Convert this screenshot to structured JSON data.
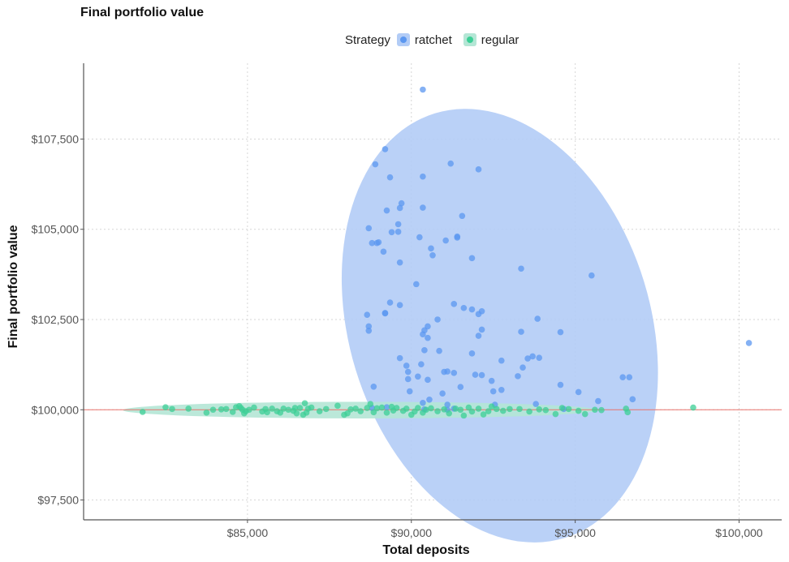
{
  "chart_data": {
    "type": "scatter",
    "title": "Final portfolio value",
    "xlabel": "Total deposits",
    "ylabel": "Final portfolio value",
    "xlim": [
      80000,
      101300
    ],
    "ylim": [
      96950,
      109600
    ],
    "x_ticks": [
      85000,
      90000,
      95000,
      100000
    ],
    "x_tick_labels": [
      "$85,000",
      "$90,000",
      "$95,000",
      "$100,000"
    ],
    "y_ticks": [
      97500,
      100000,
      102500,
      105000,
      107500
    ],
    "y_tick_labels": [
      "$97,500",
      "$100,000",
      "$102,500",
      "$105,000",
      "$107,500"
    ],
    "grid": true,
    "legend_title": "Strategy",
    "legend_position": "top",
    "reference_line": {
      "y": 100000,
      "color": "#e8736c"
    },
    "series": [
      {
        "name": "ratchet",
        "color": "#5b97f0",
        "ellipse": {
          "center": [
            92700,
            102330
          ],
          "rx": 4600,
          "ry": 6150,
          "angle_deg": -17,
          "fill": "#b2ccf6"
        },
        "points": [
          [
            90350,
            108870
          ],
          [
            89200,
            107220
          ],
          [
            91200,
            106820
          ],
          [
            88900,
            106800
          ],
          [
            92050,
            106660
          ],
          [
            89350,
            106440
          ],
          [
            90350,
            106460
          ],
          [
            89700,
            105720
          ],
          [
            89650,
            105590
          ],
          [
            89250,
            105520
          ],
          [
            90350,
            105600
          ],
          [
            91550,
            105370
          ],
          [
            89600,
            105140
          ],
          [
            88700,
            105030
          ],
          [
            89400,
            104920
          ],
          [
            89600,
            104930
          ],
          [
            90250,
            104780
          ],
          [
            91400,
            104770
          ],
          [
            91050,
            104690
          ],
          [
            91400,
            104800
          ],
          [
            88800,
            104620
          ],
          [
            88950,
            104620
          ],
          [
            89000,
            104640
          ],
          [
            90600,
            104470
          ],
          [
            89150,
            104380
          ],
          [
            90650,
            104280
          ],
          [
            91850,
            104200
          ],
          [
            89650,
            104080
          ],
          [
            93350,
            103910
          ],
          [
            95500,
            103720
          ],
          [
            90150,
            103480
          ],
          [
            91300,
            102930
          ],
          [
            89350,
            102970
          ],
          [
            89650,
            102900
          ],
          [
            91600,
            102820
          ],
          [
            91850,
            102780
          ],
          [
            92150,
            102730
          ],
          [
            92050,
            102650
          ],
          [
            88650,
            102630
          ],
          [
            89200,
            102680
          ],
          [
            89200,
            102670
          ],
          [
            90800,
            102500
          ],
          [
            93850,
            102520
          ],
          [
            88700,
            102310
          ],
          [
            88700,
            102190
          ],
          [
            90500,
            102310
          ],
          [
            90400,
            102200
          ],
          [
            92150,
            102220
          ],
          [
            93350,
            102160
          ],
          [
            94550,
            102150
          ],
          [
            90350,
            102090
          ],
          [
            90500,
            101990
          ],
          [
            92050,
            102050
          ],
          [
            90400,
            101650
          ],
          [
            90850,
            101630
          ],
          [
            91850,
            101560
          ],
          [
            93400,
            101170
          ],
          [
            93550,
            101420
          ],
          [
            93700,
            101480
          ],
          [
            93900,
            101440
          ],
          [
            92750,
            101360
          ],
          [
            89650,
            101430
          ],
          [
            89850,
            101220
          ],
          [
            90300,
            101260
          ],
          [
            89900,
            101050
          ],
          [
            91000,
            101050
          ],
          [
            91100,
            101060
          ],
          [
            91300,
            101020
          ],
          [
            91950,
            100970
          ],
          [
            92150,
            100960
          ],
          [
            93250,
            100930
          ],
          [
            96450,
            100900
          ],
          [
            96650,
            100900
          ],
          [
            90200,
            100920
          ],
          [
            90500,
            100830
          ],
          [
            89900,
            100850
          ],
          [
            92450,
            100800
          ],
          [
            88850,
            100640
          ],
          [
            91500,
            100630
          ],
          [
            94550,
            100690
          ],
          [
            89950,
            100510
          ],
          [
            92500,
            100510
          ],
          [
            92750,
            100550
          ],
          [
            95100,
            100490
          ],
          [
            90950,
            100450
          ],
          [
            90550,
            100280
          ],
          [
            90350,
            100190
          ],
          [
            91100,
            100140
          ],
          [
            93800,
            100160
          ],
          [
            95700,
            100240
          ],
          [
            96750,
            100290
          ],
          [
            92550,
            100140
          ],
          [
            88800,
            100050
          ],
          [
            89250,
            100070
          ],
          [
            90400,
            100010
          ],
          [
            91100,
            100000
          ],
          [
            91300,
            100030
          ],
          [
            94650,
            100020
          ],
          [
            100300,
            101850
          ]
        ]
      },
      {
        "name": "regular",
        "color": "#3ccf96",
        "ellipse": {
          "center": [
            88450,
            99990
          ],
          "rx": 7250,
          "ry": 230,
          "angle_deg": 0,
          "fill": "#b4e6d5"
        },
        "points": [
          [
            81800,
            99940
          ],
          [
            82500,
            100070
          ],
          [
            82700,
            100020
          ],
          [
            83200,
            100030
          ],
          [
            83750,
            99920
          ],
          [
            83950,
            100000
          ],
          [
            84200,
            100010
          ],
          [
            84350,
            100020
          ],
          [
            84550,
            99940
          ],
          [
            84650,
            100070
          ],
          [
            84750,
            100100
          ],
          [
            84800,
            100050
          ],
          [
            84850,
            100000
          ],
          [
            84900,
            99900
          ],
          [
            84950,
            99960
          ],
          [
            85050,
            100000
          ],
          [
            85200,
            100060
          ],
          [
            85450,
            99950
          ],
          [
            85550,
            100020
          ],
          [
            85600,
            99930
          ],
          [
            85750,
            100030
          ],
          [
            85900,
            99960
          ],
          [
            86000,
            99920
          ],
          [
            86100,
            100030
          ],
          [
            86250,
            100000
          ],
          [
            86400,
            99970
          ],
          [
            86450,
            100050
          ],
          [
            86500,
            99900
          ],
          [
            86600,
            100050
          ],
          [
            86700,
            99860
          ],
          [
            86750,
            100180
          ],
          [
            86800,
            99920
          ],
          [
            86850,
            100030
          ],
          [
            86950,
            100060
          ],
          [
            87200,
            99960
          ],
          [
            87400,
            100020
          ],
          [
            87750,
            100110
          ],
          [
            87950,
            99860
          ],
          [
            88050,
            99900
          ],
          [
            88150,
            100010
          ],
          [
            88300,
            100030
          ],
          [
            88450,
            99960
          ],
          [
            88650,
            100050
          ],
          [
            88750,
            100160
          ],
          [
            88850,
            99930
          ],
          [
            88950,
            100040
          ],
          [
            89100,
            100060
          ],
          [
            89250,
            99920
          ],
          [
            89400,
            100080
          ],
          [
            89450,
            99980
          ],
          [
            89550,
            100050
          ],
          [
            89750,
            99970
          ],
          [
            89850,
            100030
          ],
          [
            90000,
            99860
          ],
          [
            90100,
            99950
          ],
          [
            90200,
            100050
          ],
          [
            90350,
            99920
          ],
          [
            90450,
            100000
          ],
          [
            90600,
            100040
          ],
          [
            90800,
            99960
          ],
          [
            91000,
            100010
          ],
          [
            91150,
            99900
          ],
          [
            91350,
            100030
          ],
          [
            91500,
            100000
          ],
          [
            91600,
            99840
          ],
          [
            91750,
            100060
          ],
          [
            91850,
            99950
          ],
          [
            92050,
            100030
          ],
          [
            92200,
            99870
          ],
          [
            92350,
            99960
          ],
          [
            92450,
            100090
          ],
          [
            92600,
            100020
          ],
          [
            92800,
            99970
          ],
          [
            93000,
            100020
          ],
          [
            93300,
            100020
          ],
          [
            93600,
            99950
          ],
          [
            93900,
            100010
          ],
          [
            94100,
            99990
          ],
          [
            94400,
            99880
          ],
          [
            94600,
            100050
          ],
          [
            94800,
            100020
          ],
          [
            95100,
            99970
          ],
          [
            95300,
            99880
          ],
          [
            95600,
            100000
          ],
          [
            95800,
            99990
          ],
          [
            96550,
            100030
          ],
          [
            96600,
            99930
          ],
          [
            98600,
            100060
          ]
        ]
      }
    ]
  }
}
